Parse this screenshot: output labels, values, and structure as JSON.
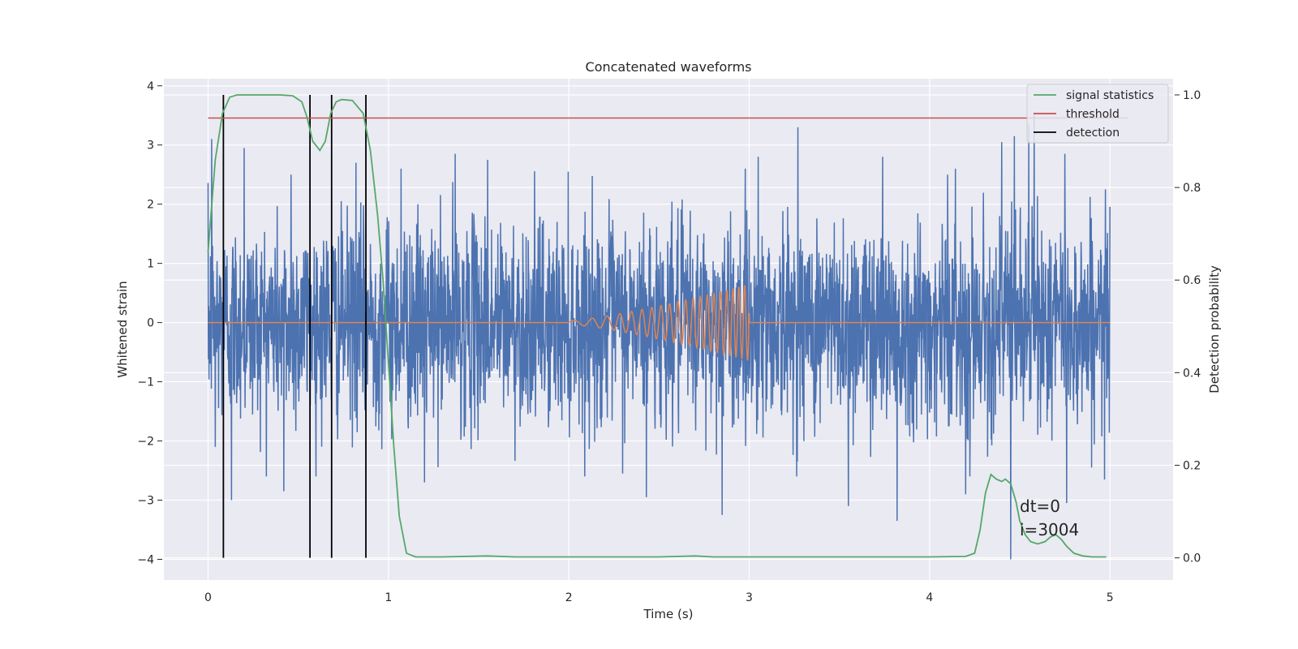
{
  "chart_data": {
    "type": "line",
    "title": "Concatenated waveforms",
    "xlabel": "Time (s)",
    "ylabel": "Whitened strain",
    "y2label": "Detection probability",
    "xlim": [
      -0.245,
      5.35
    ],
    "ylim": [
      -4.35,
      4.12
    ],
    "y2lim": [
      -0.048,
      1.035
    ],
    "xticks": [
      "0",
      "1",
      "2",
      "3",
      "4",
      "5"
    ],
    "yticks": [
      "−4",
      "−3",
      "−2",
      "−1",
      "0",
      "1",
      "2",
      "3",
      "4"
    ],
    "y2ticks": [
      "0.0",
      "0.2",
      "0.4",
      "0.6",
      "0.8",
      "1.0"
    ],
    "grid": true,
    "legend_position": "top-right",
    "legend": [
      "signal statistics",
      "threshold",
      "detection"
    ],
    "annotation": [
      "dt=0",
      "i=3004"
    ],
    "series": [
      {
        "name": "",
        "color": "#4c72b0",
        "axis": "left",
        "kind": "noise",
        "x_range": [
          0,
          5
        ],
        "typical_std": 0.85,
        "min": -4.0,
        "max": 3.55,
        "spikes": [
          {
            "x": 0.02,
            "y": 3.1
          },
          {
            "x": 0.04,
            "y": -2.1
          },
          {
            "x": 0.13,
            "y": 2.9
          },
          {
            "x": 0.2,
            "y": 2.95
          },
          {
            "x": 0.13,
            "y": -3.0
          },
          {
            "x": 0.42,
            "y": -2.85
          },
          {
            "x": 0.46,
            "y": 2.5
          },
          {
            "x": 0.82,
            "y": 2.7
          },
          {
            "x": 1.07,
            "y": 2.6
          },
          {
            "x": 1.2,
            "y": -2.7
          },
          {
            "x": 1.37,
            "y": 2.85
          },
          {
            "x": 1.55,
            "y": 2.75
          },
          {
            "x": 2.43,
            "y": -2.95
          },
          {
            "x": 3.27,
            "y": 3.3
          },
          {
            "x": 3.55,
            "y": 2.7
          },
          {
            "x": 3.74,
            "y": 2.8
          },
          {
            "x": 3.55,
            "y": -3.1
          },
          {
            "x": 3.82,
            "y": -3.35
          },
          {
            "x": 4.2,
            "y": -2.9
          },
          {
            "x": 4.4,
            "y": 3.05
          },
          {
            "x": 4.45,
            "y": -4.0
          },
          {
            "x": 4.47,
            "y": 3.15
          },
          {
            "x": 4.55,
            "y": 3.35
          },
          {
            "x": 4.58,
            "y": 3.55
          },
          {
            "x": 4.75,
            "y": 2.85
          },
          {
            "x": 4.76,
            "y": -3.05
          },
          {
            "x": 4.97,
            "y": -2.65
          },
          {
            "x": 2.85,
            "y": -3.25
          },
          {
            "x": 3.05,
            "y": 2.8
          },
          {
            "x": 4.1,
            "y": 2.5
          }
        ]
      },
      {
        "name": "",
        "color": "#dd8452",
        "axis": "left",
        "kind": "chirp",
        "x_range": [
          0,
          5
        ],
        "chirp_start": 2.0,
        "chirp_end": 3.0,
        "amp_start": 0.03,
        "amp_end": 0.65,
        "freq_start": 8,
        "freq_end": 32
      },
      {
        "name": "signal statistics",
        "color": "#55a868",
        "axis": "right",
        "x": [
          0.0,
          0.04,
          0.08,
          0.12,
          0.16,
          0.2,
          0.3,
          0.4,
          0.47,
          0.52,
          0.55,
          0.58,
          0.62,
          0.65,
          0.68,
          0.71,
          0.74,
          0.8,
          0.86,
          0.9,
          0.94,
          0.97,
          1.0,
          1.03,
          1.06,
          1.1,
          1.15,
          1.3,
          1.55,
          1.7,
          2.0,
          2.5,
          2.7,
          2.8,
          3.0,
          3.5,
          4.0,
          4.2,
          4.25,
          4.28,
          4.31,
          4.34,
          4.37,
          4.4,
          4.42,
          4.45,
          4.48,
          4.5,
          4.53,
          4.56,
          4.6,
          4.64,
          4.67,
          4.7,
          4.73,
          4.76,
          4.8,
          4.85,
          4.9,
          4.98
        ],
        "y": [
          0.66,
          0.86,
          0.96,
          0.995,
          1.0,
          1.0,
          1.0,
          1.0,
          0.998,
          0.985,
          0.95,
          0.9,
          0.88,
          0.9,
          0.96,
          0.985,
          0.99,
          0.988,
          0.96,
          0.88,
          0.74,
          0.6,
          0.42,
          0.24,
          0.09,
          0.01,
          0.002,
          0.002,
          0.004,
          0.002,
          0.002,
          0.002,
          0.004,
          0.002,
          0.002,
          0.002,
          0.002,
          0.003,
          0.01,
          0.06,
          0.14,
          0.18,
          0.17,
          0.165,
          0.17,
          0.16,
          0.12,
          0.08,
          0.05,
          0.035,
          0.03,
          0.035,
          0.045,
          0.05,
          0.04,
          0.025,
          0.01,
          0.004,
          0.002,
          0.002
        ]
      },
      {
        "name": "threshold",
        "color": "#c44e52",
        "axis": "right",
        "x": [
          0,
          5.1
        ],
        "y": [
          0.95,
          0.95
        ]
      },
      {
        "name": "detection",
        "color": "#000000",
        "axis": "right",
        "kind": "vlines",
        "x": [
          0.085,
          0.565,
          0.685,
          0.875
        ],
        "ymin": 0.0,
        "ymax": 1.0
      }
    ]
  }
}
